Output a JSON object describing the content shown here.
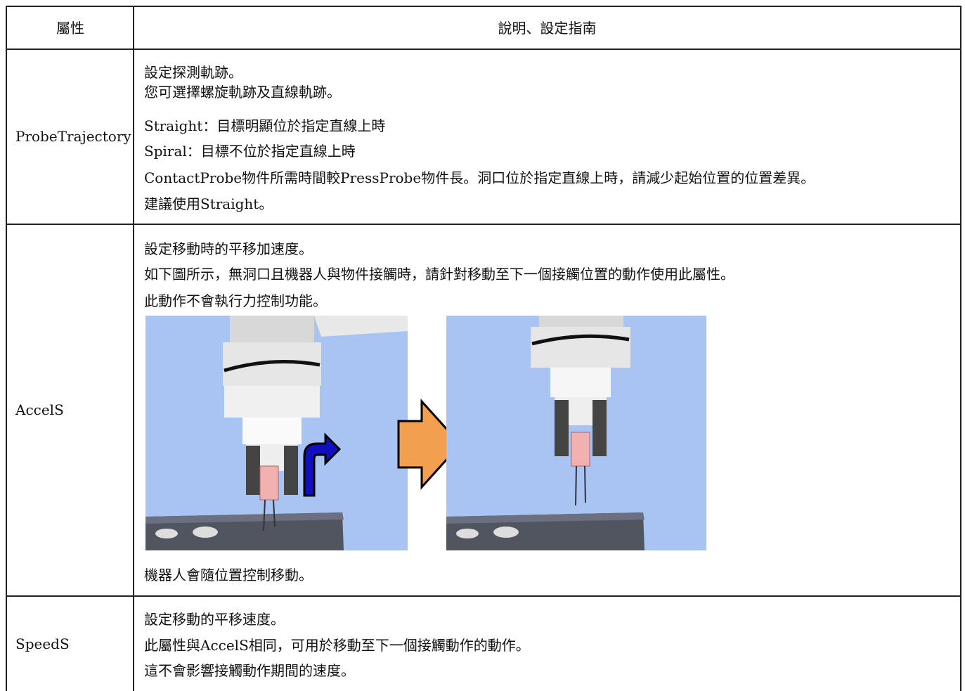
{
  "table": {
    "header": [
      "屬性",
      "說明、設定指南"
    ],
    "rows": [
      {
        "name": "ProbeTrajectory",
        "description": [
          "設定探測軌跡。",
          "您可選擇螺旋軌跡及直線軌跡。",
          "Straight：目標明顯位於指定直線上時",
          "Spiral：目標不位於指定直線上時",
          "ContactProbe物件所需時間較PressProbe物件長。洞口位於指定直線上時，請減少起始位置的位置差異。",
          "建議使用Straight。"
        ]
      },
      {
        "name": "AccelS",
        "description": [
          "設定移動時的平移加速度。",
          "如下圖所示，無洞口且機器人與物件接觸時，請針對移動至下一個接觸位置的動作使用此屬性。",
          "此動作不會執行力控制功能。"
        ],
        "caption": "機器人會隨位置控制移動。"
      },
      {
        "name": "SpeedS",
        "description": [
          "設定移動的平移速度。",
          "此屬性與AccelS相同，可用於移動至下一個接觸動作的動作。",
          "這不會影響接觸動作期間的速度。"
        ]
      }
    ]
  }
}
